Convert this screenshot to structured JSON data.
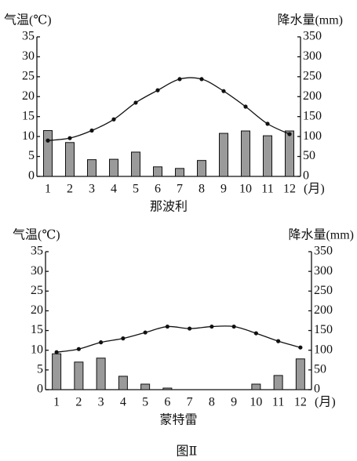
{
  "chart_data": [
    {
      "type": "combo",
      "title": "那波利",
      "y_label": "气温(℃)",
      "y2_label": "降水量(mm)",
      "x_label": "(月)",
      "categories": [
        "1",
        "2",
        "3",
        "4",
        "5",
        "6",
        "7",
        "8",
        "9",
        "10",
        "11",
        "12"
      ],
      "ylim": [
        0,
        35
      ],
      "yticks": [
        0,
        5,
        10,
        15,
        20,
        25,
        30,
        35
      ],
      "y2lim": [
        0,
        350
      ],
      "y2ticks": [
        0,
        50,
        100,
        150,
        200,
        250,
        300,
        350
      ],
      "series": [
        {
          "type": "bar",
          "axis": "y2",
          "color": "#9a9a9a",
          "values": [
            115,
            85,
            42,
            43,
            61,
            24,
            20,
            40,
            108,
            114,
            102,
            114
          ]
        },
        {
          "type": "line",
          "color": "#111",
          "values": [
            9,
            9.6,
            11.5,
            14.3,
            18.5,
            21.6,
            24.4,
            24.4,
            21.4,
            17.5,
            13.2,
            10.6
          ]
        }
      ]
    },
    {
      "type": "combo",
      "title": "蒙特雷",
      "y_label": "气温(℃)",
      "y2_label": "降水量(mm)",
      "x_label": "(月)",
      "categories": [
        "1",
        "2",
        "3",
        "4",
        "5",
        "6",
        "7",
        "8",
        "9",
        "10",
        "11",
        "12"
      ],
      "ylim": [
        0,
        35
      ],
      "yticks": [
        0,
        5,
        10,
        15,
        20,
        25,
        30,
        35
      ],
      "y2lim": [
        0,
        350
      ],
      "y2ticks": [
        0,
        50,
        100,
        150,
        200,
        250,
        300,
        350
      ],
      "series": [
        {
          "type": "bar",
          "axis": "y2",
          "color": "#9a9a9a",
          "values": [
            91,
            70,
            80,
            34,
            14,
            4,
            0,
            0,
            0,
            14,
            36,
            78
          ]
        },
        {
          "type": "line",
          "color": "#111",
          "values": [
            9.5,
            10.3,
            12,
            13,
            14.5,
            16,
            15.5,
            16,
            16,
            14.3,
            12.3,
            10.7
          ]
        }
      ]
    }
  ],
  "caption": "图Ⅱ"
}
